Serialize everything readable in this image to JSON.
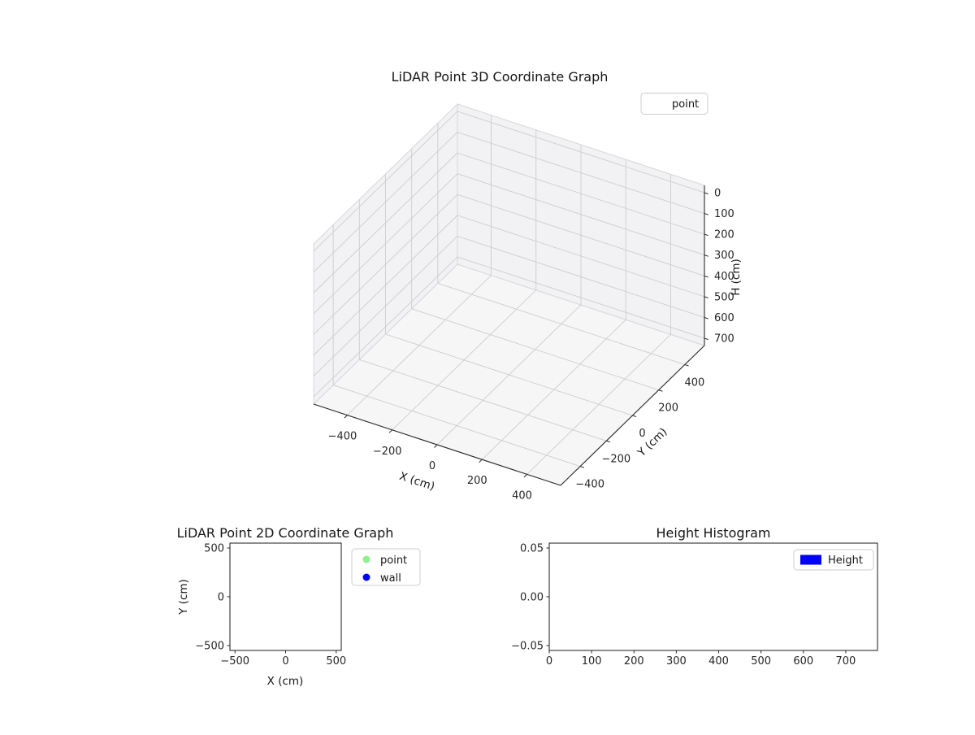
{
  "figure": {
    "background": "#ffffff"
  },
  "chart_data": [
    {
      "type": "scatter",
      "subtype": "3d",
      "title": "LiDAR Point 3D Coordinate Graph",
      "xlabel": "X (cm)",
      "ylabel": "Y (cm)",
      "zlabel": "H (cm)",
      "xlim": [
        -550,
        550
      ],
      "ylim": [
        -550,
        550
      ],
      "zlim": [
        -35,
        735
      ],
      "z_axis_inverted": true,
      "grid": true,
      "xticks": {
        "values": [
          -400,
          -200,
          0,
          200,
          400
        ],
        "labels": [
          "−400",
          "−200",
          "0",
          "200",
          "400"
        ]
      },
      "yticks": {
        "values": [
          -400,
          -200,
          0,
          200,
          400
        ],
        "labels": [
          "−400",
          "−200",
          "0",
          "200",
          "400"
        ]
      },
      "zticks": {
        "values": [
          0,
          100,
          200,
          300,
          400,
          500,
          600,
          700
        ],
        "labels": [
          "0",
          "100",
          "200",
          "300",
          "400",
          "500",
          "600",
          "700"
        ]
      },
      "legend": [
        {
          "label": "point"
        }
      ],
      "legend_position": "upper right, outside top",
      "series": [
        {
          "name": "point",
          "points": []
        }
      ]
    },
    {
      "type": "scatter",
      "subtype": "2d",
      "title": "LiDAR Point 2D Coordinate Graph",
      "xlabel": "X (cm)",
      "ylabel": "Y (cm)",
      "xlim": [
        -550,
        550
      ],
      "ylim": [
        -550,
        550
      ],
      "grid": false,
      "xticks": {
        "values": [
          -500,
          0,
          500
        ],
        "labels": [
          "−500",
          "0",
          "500"
        ]
      },
      "yticks": {
        "values": [
          -500,
          0,
          500
        ],
        "labels": [
          "−500",
          "0",
          "500"
        ]
      },
      "legend": [
        {
          "label": "point",
          "color": "#90ee90",
          "marker": "circle"
        },
        {
          "label": "wall",
          "color": "#0000ff",
          "marker": "circle"
        }
      ],
      "legend_position": "right of axes",
      "series": [
        {
          "name": "point",
          "points": []
        },
        {
          "name": "wall",
          "points": []
        }
      ]
    },
    {
      "type": "histogram",
      "title": "Height Histogram",
      "xlabel": "",
      "ylabel": "",
      "xlim": [
        0,
        775
      ],
      "ylim": [
        -0.055,
        0.055
      ],
      "grid": false,
      "xticks": {
        "values": [
          0,
          100,
          200,
          300,
          400,
          500,
          600,
          700
        ],
        "labels": [
          "0",
          "100",
          "200",
          "300",
          "400",
          "500",
          "600",
          "700"
        ]
      },
      "yticks": {
        "values": [
          -0.05,
          0,
          0.05
        ],
        "labels": [
          "−0.05",
          "0.00",
          "0.05"
        ]
      },
      "legend": [
        {
          "label": "Height",
          "color": "#0000ff",
          "marker": "rect"
        }
      ],
      "legend_position": "upper right",
      "values": []
    }
  ]
}
